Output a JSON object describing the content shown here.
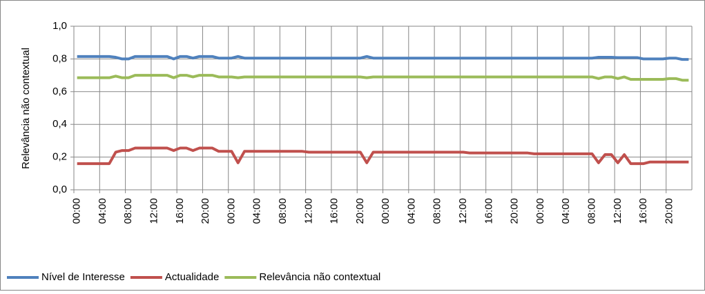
{
  "chart_data": {
    "type": "line",
    "y_label": "Relevância não contextual",
    "categories": [
      "00:00",
      null,
      null,
      null,
      "04:00",
      null,
      null,
      null,
      "08:00",
      null,
      null,
      null,
      "12:00",
      null,
      null,
      null,
      "16:00",
      null,
      null,
      null,
      "20:00",
      null,
      null,
      null,
      "00:00",
      null,
      null,
      null,
      "04:00",
      null,
      null,
      null,
      "08:00",
      null,
      null,
      null,
      "12:00",
      null,
      null,
      null,
      "16:00",
      null,
      null,
      null,
      "20:00",
      null,
      null,
      null,
      "00:00",
      null,
      null,
      null,
      "04:00",
      null,
      null,
      null,
      "08:00",
      null,
      null,
      null,
      "12:00",
      null,
      null,
      null,
      "16:00",
      null,
      null,
      null,
      "20:00",
      null,
      null,
      null,
      "00:00",
      null,
      null,
      null,
      "04:00",
      null,
      null,
      null,
      "08:00",
      null,
      null,
      null,
      "12:00",
      null,
      null,
      null,
      "16:00",
      null,
      null,
      null,
      "20:00",
      null,
      null,
      null
    ],
    "series": [
      {
        "name": "Nível de Interesse",
        "color": "#4f81bd",
        "values": [
          0.815,
          0.815,
          0.815,
          0.815,
          0.815,
          0.815,
          0.81,
          0.8,
          0.8,
          0.815,
          0.815,
          0.815,
          0.815,
          0.815,
          0.815,
          0.8,
          0.815,
          0.815,
          0.805,
          0.815,
          0.815,
          0.815,
          0.805,
          0.805,
          0.805,
          0.815,
          0.805,
          0.805,
          0.805,
          0.805,
          0.805,
          0.805,
          0.805,
          0.805,
          0.805,
          0.805,
          0.805,
          0.805,
          0.805,
          0.805,
          0.805,
          0.805,
          0.805,
          0.805,
          0.805,
          0.815,
          0.805,
          0.805,
          0.805,
          0.805,
          0.805,
          0.805,
          0.805,
          0.805,
          0.805,
          0.805,
          0.805,
          0.805,
          0.805,
          0.805,
          0.805,
          0.805,
          0.805,
          0.805,
          0.805,
          0.805,
          0.805,
          0.805,
          0.805,
          0.805,
          0.805,
          0.805,
          0.805,
          0.805,
          0.805,
          0.805,
          0.805,
          0.805,
          0.805,
          0.805,
          0.805,
          0.81,
          0.81,
          0.81,
          0.808,
          0.808,
          0.808,
          0.808,
          0.8,
          0.8,
          0.8,
          0.8,
          0.805,
          0.805,
          0.797,
          0.797
        ]
      },
      {
        "name": "Actualidade",
        "color": "#c0504d",
        "values": [
          0.16,
          0.16,
          0.16,
          0.16,
          0.16,
          0.16,
          0.23,
          0.24,
          0.24,
          0.255,
          0.255,
          0.255,
          0.255,
          0.255,
          0.255,
          0.24,
          0.255,
          0.255,
          0.24,
          0.255,
          0.255,
          0.255,
          0.235,
          0.235,
          0.235,
          0.165,
          0.235,
          0.235,
          0.235,
          0.235,
          0.235,
          0.235,
          0.235,
          0.235,
          0.235,
          0.235,
          0.23,
          0.23,
          0.23,
          0.23,
          0.23,
          0.23,
          0.23,
          0.23,
          0.23,
          0.165,
          0.23,
          0.23,
          0.23,
          0.23,
          0.23,
          0.23,
          0.23,
          0.23,
          0.23,
          0.23,
          0.23,
          0.23,
          0.23,
          0.23,
          0.23,
          0.225,
          0.225,
          0.225,
          0.225,
          0.225,
          0.225,
          0.225,
          0.225,
          0.225,
          0.225,
          0.22,
          0.22,
          0.22,
          0.22,
          0.22,
          0.22,
          0.22,
          0.22,
          0.22,
          0.22,
          0.165,
          0.215,
          0.215,
          0.165,
          0.215,
          0.16,
          0.16,
          0.16,
          0.17,
          0.17,
          0.17,
          0.17,
          0.17,
          0.17,
          0.17
        ]
      },
      {
        "name": "Relevância não contextual",
        "color": "#9bbb59",
        "values": [
          0.685,
          0.685,
          0.685,
          0.685,
          0.685,
          0.685,
          0.695,
          0.685,
          0.685,
          0.7,
          0.7,
          0.7,
          0.7,
          0.7,
          0.7,
          0.685,
          0.7,
          0.7,
          0.69,
          0.7,
          0.7,
          0.7,
          0.69,
          0.69,
          0.69,
          0.685,
          0.69,
          0.69,
          0.69,
          0.69,
          0.69,
          0.69,
          0.69,
          0.69,
          0.69,
          0.69,
          0.69,
          0.69,
          0.69,
          0.69,
          0.69,
          0.69,
          0.69,
          0.69,
          0.69,
          0.685,
          0.69,
          0.69,
          0.69,
          0.69,
          0.69,
          0.69,
          0.69,
          0.69,
          0.69,
          0.69,
          0.69,
          0.69,
          0.69,
          0.69,
          0.69,
          0.69,
          0.69,
          0.69,
          0.69,
          0.69,
          0.69,
          0.69,
          0.69,
          0.69,
          0.69,
          0.69,
          0.69,
          0.69,
          0.69,
          0.69,
          0.69,
          0.69,
          0.69,
          0.69,
          0.69,
          0.68,
          0.69,
          0.69,
          0.68,
          0.69,
          0.675,
          0.675,
          0.675,
          0.675,
          0.675,
          0.675,
          0.68,
          0.68,
          0.67,
          0.67
        ]
      }
    ],
    "ylim": [
      0,
      1
    ],
    "yticks": [
      {
        "value": 0,
        "label": "0,0"
      },
      {
        "value": 0.2,
        "label": "0,2"
      },
      {
        "value": 0.4,
        "label": "0,4"
      },
      {
        "value": 0.6,
        "label": "0,6"
      },
      {
        "value": 0.8,
        "label": "0,8"
      },
      {
        "value": 1,
        "label": "1,0"
      }
    ],
    "grid": true,
    "legend": "bottom"
  }
}
